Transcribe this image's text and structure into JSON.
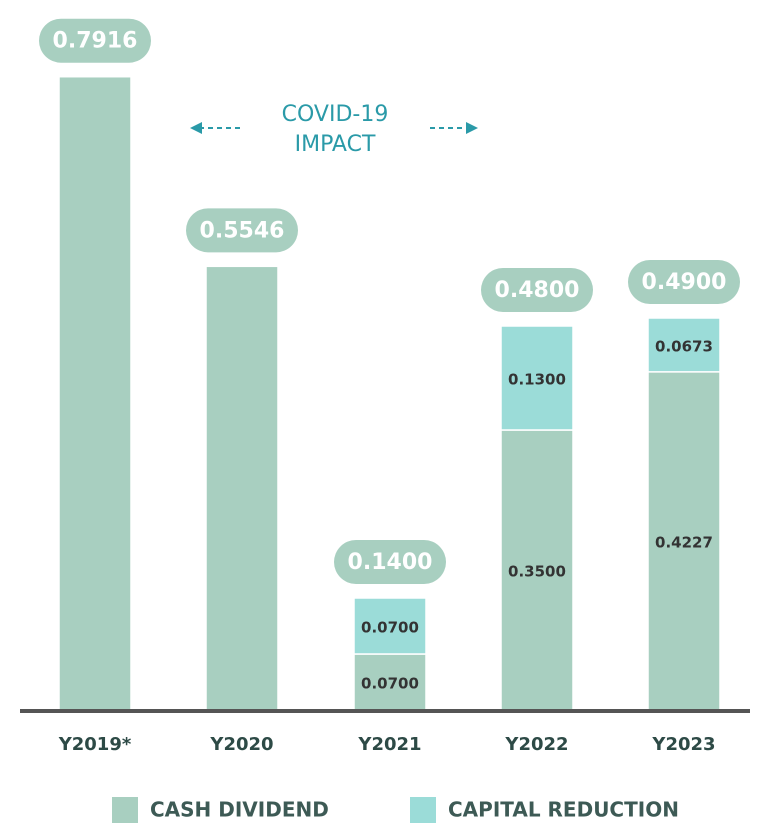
{
  "chart_data": {
    "type": "stacked_bar",
    "categories": [
      "Y2019*",
      "Y2020",
      "Y2021",
      "Y2022",
      "Y2023"
    ],
    "series": [
      {
        "name": "CASH DIVIDEND",
        "color": "#a8cfc0",
        "values": [
          0.7916,
          0.5546,
          0.07,
          0.35,
          0.4227
        ],
        "value_labels": [
          null,
          null,
          "0.0700",
          "0.3500",
          "0.4227"
        ]
      },
      {
        "name": "CAPITAL REDUCTION",
        "color": "#9bdcd8",
        "values": [
          null,
          null,
          0.07,
          0.13,
          0.0673
        ],
        "value_labels": [
          null,
          null,
          "0.0700",
          "0.1300",
          "0.0673"
        ]
      }
    ],
    "totals": [
      0.7916,
      0.5546,
      0.14,
      0.48,
      0.49
    ],
    "total_labels": [
      "0.7916",
      "0.5546",
      "0.1400",
      "0.4800",
      "0.4900"
    ],
    "annotation": "COVID-19 IMPACT",
    "ylim": [
      0,
      0.8
    ]
  }
}
